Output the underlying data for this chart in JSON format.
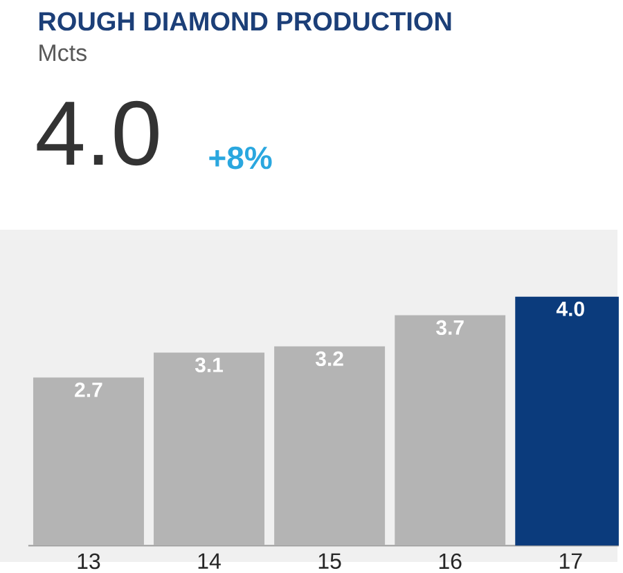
{
  "chart_data": {
    "type": "bar",
    "title": "ROUGH DIAMOND PRODUCTION",
    "subtitle": "Mcts",
    "annotations": [
      "4.0",
      "+8%"
    ],
    "categories": [
      "13",
      "14",
      "15",
      "16",
      "17"
    ],
    "values": [
      2.7,
      3.1,
      3.2,
      3.7,
      4.0
    ],
    "colors": [
      "#b4b4b4",
      "#b4b4b4",
      "#b4b4b4",
      "#b4b4b4",
      "#0b3b7c"
    ],
    "value_labels": [
      "2.7",
      "3.1",
      "3.2",
      "3.7",
      "4.0"
    ]
  }
}
